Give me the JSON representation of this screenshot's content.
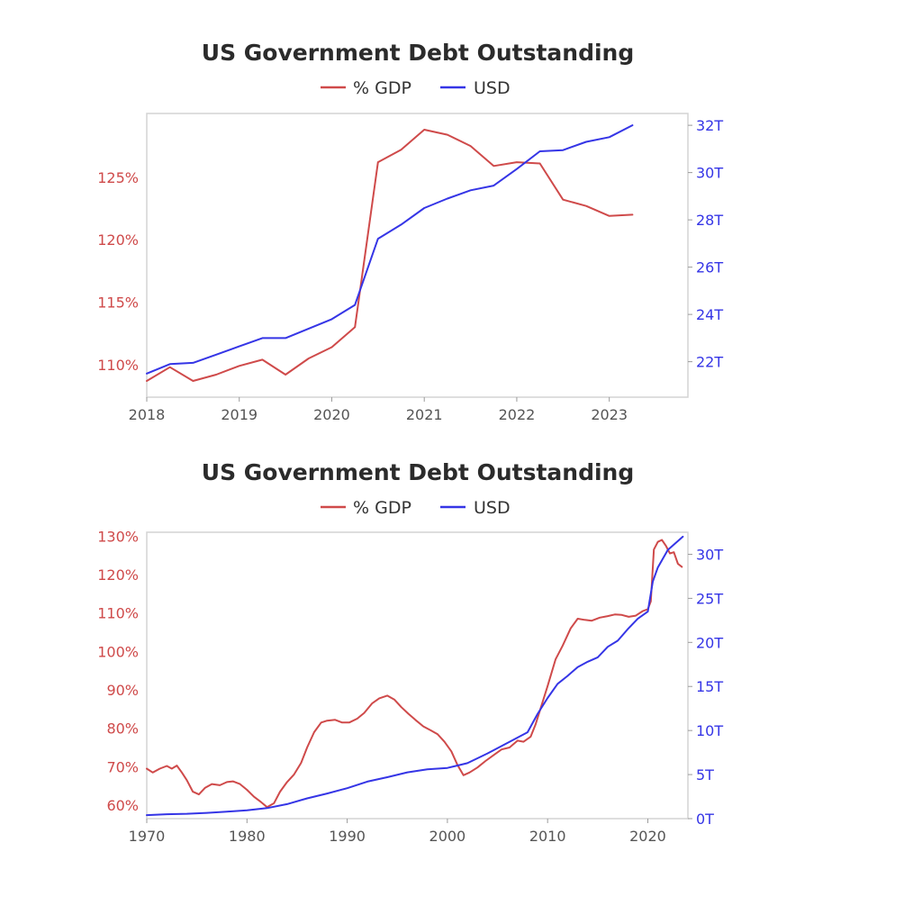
{
  "colors": {
    "gdp": "#cf4a4a",
    "usd": "#3535e6",
    "axis_text": "#555555"
  },
  "chart_data": [
    {
      "type": "line",
      "title": "US Government Debt Outstanding",
      "legend": [
        "% GDP",
        "USD"
      ],
      "xlim": [
        2018,
        2023.85
      ],
      "x_ticks": [
        2018,
        2019,
        2020,
        2021,
        2022,
        2023
      ],
      "x_tick_labels": [
        "2018",
        "2019",
        "2020",
        "2021",
        "2022",
        "2023"
      ],
      "ylim_left": [
        107.4,
        130.1
      ],
      "y_ticks_left": [
        110,
        115,
        120,
        125
      ],
      "y_tick_labels_left": [
        "110%",
        "115%",
        "120%",
        "125%"
      ],
      "ylim_right": [
        20.5,
        32.5
      ],
      "y_ticks_right": [
        22,
        24,
        26,
        28,
        30,
        32
      ],
      "y_tick_labels_right": [
        "22T",
        "24T",
        "26T",
        "28T",
        "30T",
        "32T"
      ],
      "series": [
        {
          "name": "% GDP",
          "axis": "left",
          "x": [
            2018.0,
            2018.25,
            2018.5,
            2018.75,
            2019.0,
            2019.25,
            2019.5,
            2019.75,
            2020.0,
            2020.25,
            2020.5,
            2020.75,
            2021.0,
            2021.25,
            2021.5,
            2021.75,
            2022.0,
            2022.25,
            2022.5,
            2022.75,
            2023.0,
            2023.25
          ],
          "values": [
            108.7,
            109.8,
            108.7,
            109.2,
            109.9,
            110.4,
            109.2,
            110.5,
            111.4,
            113.0,
            126.2,
            127.2,
            128.8,
            128.4,
            127.5,
            125.9,
            126.2,
            126.1,
            123.2,
            122.7,
            121.9,
            122.0
          ]
        },
        {
          "name": "USD",
          "axis": "right",
          "x": [
            2018.0,
            2018.25,
            2018.5,
            2018.75,
            2019.0,
            2019.25,
            2019.5,
            2019.75,
            2020.0,
            2020.25,
            2020.5,
            2020.75,
            2021.0,
            2021.25,
            2021.5,
            2021.75,
            2022.0,
            2022.25,
            2022.5,
            2022.75,
            2023.0,
            2023.25
          ],
          "values": [
            21.5,
            21.9,
            21.95,
            22.3,
            22.65,
            23.0,
            23.0,
            23.4,
            23.8,
            24.4,
            27.2,
            27.8,
            28.5,
            28.9,
            29.25,
            29.45,
            30.15,
            30.9,
            30.95,
            31.3,
            31.5,
            32.0
          ]
        }
      ]
    },
    {
      "type": "line",
      "title": "US Government Debt Outstanding",
      "legend": [
        "% GDP",
        "USD"
      ],
      "xlim": [
        1970,
        2024
      ],
      "x_ticks": [
        1970,
        1980,
        1990,
        2000,
        2010,
        2020
      ],
      "x_tick_labels": [
        "1970",
        "1980",
        "1990",
        "2000",
        "2010",
        "2020"
      ],
      "ylim_left": [
        56.5,
        131
      ],
      "y_ticks_left": [
        60,
        70,
        80,
        90,
        100,
        110,
        120,
        130
      ],
      "y_tick_labels_left": [
        "60%",
        "70%",
        "80%",
        "90%",
        "100%",
        "110%",
        "120%",
        "130%"
      ],
      "ylim_right": [
        0,
        32.5
      ],
      "y_ticks_right": [
        0,
        5,
        10,
        15,
        20,
        25,
        30
      ],
      "y_tick_labels_right": [
        "0T",
        "5T",
        "10T",
        "15T",
        "20T",
        "25T",
        "30T"
      ],
      "series": [
        {
          "name": "% GDP",
          "axis": "left",
          "x": [
            1970,
            1970.6,
            1971.3,
            1972,
            1972.5,
            1973,
            1973.5,
            1974,
            1974.6,
            1975.2,
            1975.8,
            1976.5,
            1977.3,
            1978,
            1978.6,
            1979.3,
            1980,
            1980.7,
            1981.4,
            1982,
            1982.7,
            1983.3,
            1984,
            1984.7,
            1985.4,
            1986,
            1986.7,
            1987.4,
            1988,
            1988.8,
            1989.5,
            1990.2,
            1991,
            1991.7,
            1992.5,
            1993.2,
            1994,
            1994.7,
            1995.4,
            1996.1,
            1996.8,
            1997.6,
            1998.3,
            1999,
            1999.7,
            2000.4,
            2001,
            2001.6,
            2002.2,
            2003,
            2003.8,
            2004.6,
            2005.4,
            2006.2,
            2007,
            2007.6,
            2008.3,
            2008.8,
            2009.4,
            2010,
            2010.8,
            2011.5,
            2012.3,
            2013,
            2013.7,
            2014.4,
            2015.2,
            2016,
            2016.7,
            2017.4,
            2018.1,
            2018.8,
            2019.5,
            2020,
            2020.3,
            2020.6,
            2021,
            2021.4,
            2021.8,
            2022.2,
            2022.6,
            2023,
            2023.4
          ],
          "values": [
            69.5,
            68.5,
            69.5,
            70.2,
            69.5,
            70.3,
            68.5,
            66.5,
            63.5,
            62.8,
            64.5,
            65.5,
            65.2,
            66.0,
            66.2,
            65.5,
            64.0,
            62.2,
            60.8,
            59.5,
            60.5,
            63.5,
            66.0,
            68.0,
            71.0,
            75.0,
            79.0,
            81.5,
            82.0,
            82.2,
            81.5,
            81.5,
            82.5,
            84.0,
            86.5,
            87.8,
            88.5,
            87.5,
            85.5,
            83.8,
            82.2,
            80.5,
            79.5,
            78.5,
            76.5,
            74.0,
            70.5,
            67.8,
            68.5,
            69.8,
            71.5,
            73.0,
            74.5,
            75.0,
            76.8,
            76.5,
            77.8,
            81.0,
            86.0,
            91.0,
            98.0,
            101.5,
            106.0,
            108.5,
            108.2,
            108.0,
            108.8,
            109.2,
            109.6,
            109.5,
            109.0,
            109.3,
            110.5,
            111.0,
            113.0,
            126.5,
            128.5,
            129.0,
            127.5,
            125.5,
            125.8,
            122.8,
            122.0
          ]
        },
        {
          "name": "USD",
          "axis": "right",
          "x": [
            1970,
            1972,
            1974,
            1976,
            1978,
            1980,
            1982,
            1984,
            1986,
            1988,
            1990,
            1992,
            1994,
            1996,
            1998,
            2000,
            2002,
            2004,
            2006,
            2008,
            2009,
            2010,
            2011,
            2012,
            2013,
            2014,
            2015,
            2016,
            2017,
            2018,
            2019,
            2020,
            2020.5,
            2021,
            2022,
            2023,
            2023.5
          ],
          "values": [
            0.4,
            0.5,
            0.55,
            0.65,
            0.8,
            0.95,
            1.2,
            1.65,
            2.3,
            2.85,
            3.45,
            4.2,
            4.7,
            5.25,
            5.6,
            5.75,
            6.3,
            7.4,
            8.6,
            9.8,
            11.9,
            13.7,
            15.3,
            16.2,
            17.2,
            17.8,
            18.3,
            19.5,
            20.2,
            21.5,
            22.7,
            23.5,
            26.9,
            28.5,
            30.5,
            31.5,
            32.0
          ]
        }
      ]
    }
  ]
}
